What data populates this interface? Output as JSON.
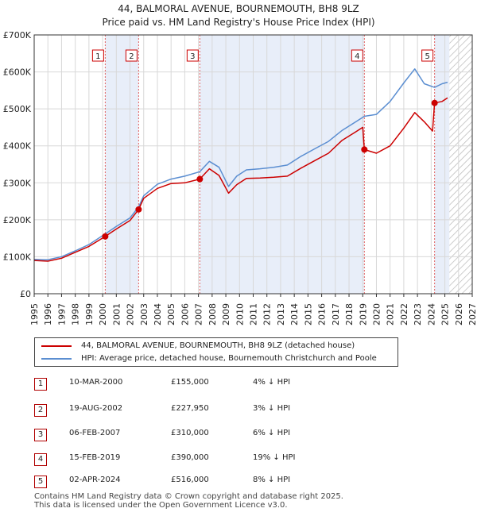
{
  "title_line1": "44, BALMORAL AVENUE, BOURNEMOUTH, BH8 9LZ",
  "title_line2": "Price paid vs. HM Land Registry's House Price Index (HPI)",
  "chart_data": {
    "type": "line",
    "xlim": [
      1995,
      2027
    ],
    "ylim": [
      0,
      700000
    ],
    "y_ticks": [
      0,
      100000,
      200000,
      300000,
      400000,
      500000,
      600000,
      700000
    ],
    "y_tick_labels": [
      "£0",
      "£100K",
      "£200K",
      "£300K",
      "£400K",
      "£500K",
      "£600K",
      "£700K"
    ],
    "x_ticks": [
      1995,
      1996,
      1997,
      1998,
      1999,
      2000,
      2001,
      2002,
      2003,
      2004,
      2005,
      2006,
      2007,
      2008,
      2009,
      2010,
      2011,
      2012,
      2013,
      2014,
      2015,
      2016,
      2017,
      2018,
      2019,
      2020,
      2021,
      2022,
      2023,
      2024,
      2025,
      2026,
      2027
    ],
    "x_tick_labels": [
      "1995",
      "1996",
      "1997",
      "1998",
      "1999",
      "2000",
      "2001",
      "2002",
      "2003",
      "2004",
      "2005",
      "2006",
      "2007",
      "2008",
      "2009",
      "2010",
      "2011",
      "2012",
      "2013",
      "2014",
      "2015",
      "2016",
      "2017",
      "2018",
      "2019",
      "2020",
      "2021",
      "2022",
      "2023",
      "2024",
      "2025",
      "2026",
      "2027"
    ],
    "grid": true,
    "shaded_periods": [
      [
        2000.19,
        2002.63
      ],
      [
        2007.1,
        2019.12
      ],
      [
        2024.25,
        2025.33
      ]
    ],
    "future_hatch_from": 2025.33,
    "series": [
      {
        "name": "44, BALMORAL AVENUE, BOURNEMOUTH, BH8 9LZ (detached house)",
        "color": "#cc0000",
        "points": [
          [
            1995.0,
            90000
          ],
          [
            1996.0,
            88000
          ],
          [
            1997.0,
            96000
          ],
          [
            1998.0,
            112000
          ],
          [
            1999.0,
            128000
          ],
          [
            2000.19,
            155000
          ],
          [
            2001.0,
            175000
          ],
          [
            2002.0,
            198000
          ],
          [
            2002.63,
            227950
          ],
          [
            2003.0,
            258000
          ],
          [
            2004.0,
            285000
          ],
          [
            2005.0,
            298000
          ],
          [
            2006.0,
            300000
          ],
          [
            2007.1,
            310000
          ],
          [
            2007.8,
            338000
          ],
          [
            2008.5,
            320000
          ],
          [
            2009.2,
            272000
          ],
          [
            2009.8,
            295000
          ],
          [
            2010.5,
            312000
          ],
          [
            2011.5,
            313000
          ],
          [
            2012.5,
            315000
          ],
          [
            2013.5,
            318000
          ],
          [
            2014.5,
            340000
          ],
          [
            2015.5,
            360000
          ],
          [
            2016.5,
            380000
          ],
          [
            2017.5,
            415000
          ],
          [
            2018.5,
            438000
          ],
          [
            2019.0,
            450000
          ],
          [
            2019.12,
            390000
          ],
          [
            2020.0,
            380000
          ],
          [
            2021.0,
            400000
          ],
          [
            2022.0,
            448000
          ],
          [
            2022.8,
            490000
          ],
          [
            2023.5,
            465000
          ],
          [
            2024.1,
            440000
          ],
          [
            2024.25,
            516000
          ],
          [
            2024.8,
            520000
          ],
          [
            2025.2,
            530000
          ]
        ]
      },
      {
        "name": "HPI: Average price, detached house, Bournemouth Christchurch and Poole",
        "color": "#5b8ed1",
        "points": [
          [
            1995.0,
            93000
          ],
          [
            1996.0,
            92000
          ],
          [
            1997.0,
            100000
          ],
          [
            1998.0,
            116000
          ],
          [
            1999.0,
            133000
          ],
          [
            2000.19,
            162000
          ],
          [
            2001.0,
            182000
          ],
          [
            2002.0,
            205000
          ],
          [
            2002.63,
            235000
          ],
          [
            2003.0,
            265000
          ],
          [
            2004.0,
            296000
          ],
          [
            2005.0,
            310000
          ],
          [
            2006.0,
            318000
          ],
          [
            2007.1,
            330000
          ],
          [
            2007.8,
            358000
          ],
          [
            2008.5,
            342000
          ],
          [
            2009.2,
            290000
          ],
          [
            2009.8,
            318000
          ],
          [
            2010.5,
            335000
          ],
          [
            2011.5,
            338000
          ],
          [
            2012.5,
            342000
          ],
          [
            2013.5,
            348000
          ],
          [
            2014.5,
            372000
          ],
          [
            2015.5,
            392000
          ],
          [
            2016.5,
            412000
          ],
          [
            2017.5,
            442000
          ],
          [
            2018.5,
            465000
          ],
          [
            2019.12,
            480000
          ],
          [
            2020.0,
            485000
          ],
          [
            2021.0,
            520000
          ],
          [
            2022.0,
            570000
          ],
          [
            2022.8,
            608000
          ],
          [
            2023.5,
            568000
          ],
          [
            2024.25,
            558000
          ],
          [
            2024.8,
            568000
          ],
          [
            2025.2,
            572000
          ]
        ]
      }
    ],
    "sales": [
      {
        "label": "1",
        "x": 2000.19,
        "y": 155000
      },
      {
        "label": "2",
        "x": 2002.63,
        "y": 227950
      },
      {
        "label": "3",
        "x": 2007.1,
        "y": 310000
      },
      {
        "label": "4",
        "x": 2019.12,
        "y": 390000
      },
      {
        "label": "5",
        "x": 2024.25,
        "y": 516000
      }
    ]
  },
  "legend": {
    "property": "44, BALMORAL AVENUE, BOURNEMOUTH, BH8 9LZ (detached house)",
    "hpi": "HPI: Average price, detached house, Bournemouth Christchurch and Poole"
  },
  "transactions": [
    {
      "num": "1",
      "date": "10-MAR-2000",
      "price": "£155,000",
      "hpi": "4% ↓ HPI"
    },
    {
      "num": "2",
      "date": "19-AUG-2002",
      "price": "£227,950",
      "hpi": "3% ↓ HPI"
    },
    {
      "num": "3",
      "date": "06-FEB-2007",
      "price": "£310,000",
      "hpi": "6% ↓ HPI"
    },
    {
      "num": "4",
      "date": "15-FEB-2019",
      "price": "£390,000",
      "hpi": "19% ↓ HPI"
    },
    {
      "num": "5",
      "date": "02-APR-2024",
      "price": "£516,000",
      "hpi": "8% ↓ HPI"
    }
  ],
  "footer_line1": "Contains HM Land Registry data © Crown copyright and database right 2025.",
  "footer_line2": "This data is licensed under the Open Government Licence v3.0."
}
